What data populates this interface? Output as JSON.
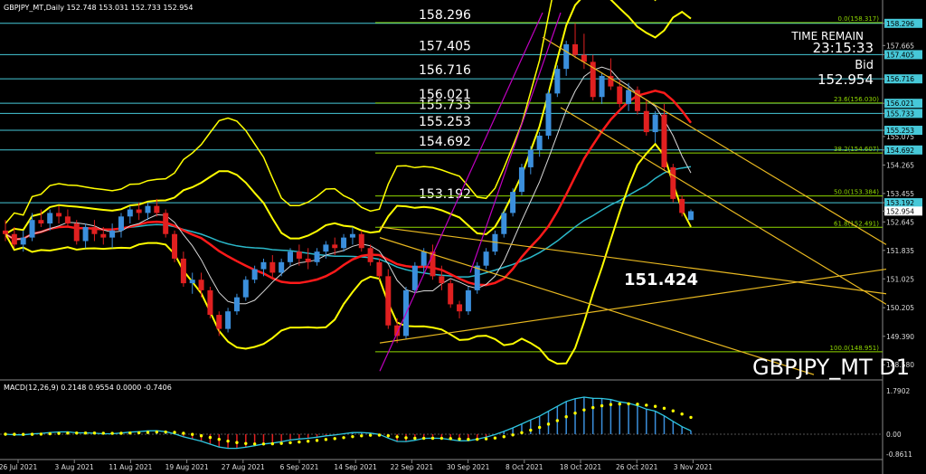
{
  "header": {
    "text": "GBPJPY_MT,Daily  152.748 153.031 152.733 152.954",
    "macd_text": "MACD(12,26,9) 0.2148 0.9554 0.0000 -0.7406"
  },
  "overlay": {
    "time_remain_label": "TIME REMAIN",
    "time_remain_value": "23:15:33",
    "bid_label": "Bid",
    "bid_value": "152.954",
    "symbol_label": "GBPJPY_MT D1",
    "big_level": "151.424"
  },
  "colors": {
    "background": "#000000",
    "bull": "#3b8fdc",
    "bear": "#e02020",
    "bands": "#ffff00",
    "ma_red": "#ff1a1a",
    "ma_cyan": "#2bb8c9",
    "ma_white": "#d8d8d8",
    "hline": "#46c8d8",
    "fib": "#8fd800",
    "trend_orange": "#e8b820",
    "channel_magenta": "#c000c0",
    "macd_hist": "#3b8fdc",
    "macd_neg": "#e02020",
    "macd_line": "#2ec6e0",
    "macd_signal": "#ffff00"
  },
  "chart_data": {
    "type": "candlestick",
    "title": "GBPJPY_MT,Daily",
    "ylim": [
      148.2,
      158.6
    ],
    "price_axis_labels": [
      "158.296",
      "157.665",
      "157.405",
      "156.716",
      "156.021",
      "155.733",
      "155.075",
      "155.253",
      "154.692",
      "154.265",
      "153.455",
      "153.192",
      "152.954",
      "152.645",
      "151.835",
      "151.025",
      "150.205",
      "149.390",
      "148.580"
    ],
    "x_axis_labels": [
      "26 Jul 2021",
      "3 Aug 2021",
      "11 Aug 2021",
      "19 Aug 2021",
      "27 Aug 2021",
      "6 Sep 2021",
      "14 Sep 2021",
      "22 Sep 2021",
      "30 Sep 2021",
      "8 Oct 2021",
      "18 Oct 2021",
      "26 Oct 2021",
      "3 Nov 2021"
    ],
    "horizontal_levels": [
      {
        "label": "158.296",
        "value": 158.296
      },
      {
        "label": "157.405",
        "value": 157.405
      },
      {
        "label": "156.716",
        "value": 156.716
      },
      {
        "label": "156.021",
        "value": 156.021
      },
      {
        "label": "155.733",
        "value": 155.733
      },
      {
        "label": "155.253",
        "value": 155.253
      },
      {
        "label": "154.692",
        "value": 154.692
      },
      {
        "label": "153.192",
        "value": 153.192
      }
    ],
    "fib_levels": [
      {
        "label": "0.0(158.317)",
        "value": 158.317
      },
      {
        "label": "23.6(156.030)",
        "value": 156.03
      },
      {
        "label": "38.2(154.607)",
        "value": 154.607
      },
      {
        "label": "50.0(153.384)",
        "value": 153.384
      },
      {
        "label": "61.8(152.491)",
        "value": 152.491
      },
      {
        "label": "100.0(148.951)",
        "value": 148.951
      }
    ],
    "candles": [
      [
        152.4,
        152.7,
        152.1,
        152.3
      ],
      [
        152.3,
        152.5,
        151.9,
        152.0
      ],
      [
        152.0,
        152.4,
        151.8,
        152.2
      ],
      [
        152.2,
        152.9,
        152.1,
        152.7
      ],
      [
        152.7,
        153.0,
        152.5,
        152.6
      ],
      [
        152.6,
        153.0,
        152.4,
        152.9
      ],
      [
        152.9,
        153.1,
        152.6,
        152.8
      ],
      [
        152.8,
        153.0,
        152.5,
        152.6
      ],
      [
        152.6,
        152.7,
        152.0,
        152.1
      ],
      [
        152.1,
        152.6,
        151.9,
        152.5
      ],
      [
        152.5,
        152.7,
        152.1,
        152.3
      ],
      [
        152.3,
        152.5,
        152.0,
        152.2
      ],
      [
        152.2,
        152.6,
        151.9,
        152.4
      ],
      [
        152.4,
        152.9,
        152.2,
        152.8
      ],
      [
        152.8,
        153.1,
        152.6,
        153.0
      ],
      [
        153.0,
        153.2,
        152.7,
        152.9
      ],
      [
        152.9,
        153.2,
        152.7,
        153.1
      ],
      [
        153.1,
        153.3,
        152.8,
        152.9
      ],
      [
        152.9,
        153.0,
        152.2,
        152.3
      ],
      [
        152.3,
        152.4,
        151.5,
        151.6
      ],
      [
        151.6,
        151.8,
        150.8,
        150.9
      ],
      [
        150.9,
        151.2,
        150.6,
        151.0
      ],
      [
        151.0,
        151.2,
        150.5,
        150.7
      ],
      [
        150.7,
        150.8,
        149.9,
        150.0
      ],
      [
        150.0,
        150.1,
        149.4,
        149.6
      ],
      [
        149.6,
        150.2,
        149.5,
        150.1
      ],
      [
        150.1,
        150.6,
        150.0,
        150.5
      ],
      [
        150.5,
        151.1,
        150.4,
        151.0
      ],
      [
        151.0,
        151.4,
        150.9,
        151.3
      ],
      [
        151.3,
        151.6,
        151.1,
        151.5
      ],
      [
        151.5,
        151.7,
        151.0,
        151.2
      ],
      [
        151.2,
        151.6,
        151.1,
        151.5
      ],
      [
        151.5,
        151.9,
        151.4,
        151.8
      ],
      [
        151.8,
        152.0,
        151.4,
        151.6
      ],
      [
        151.6,
        151.9,
        151.3,
        151.5
      ],
      [
        151.5,
        151.9,
        151.4,
        151.8
      ],
      [
        151.8,
        152.1,
        151.6,
        152.0
      ],
      [
        152.0,
        152.2,
        151.7,
        151.9
      ],
      [
        151.9,
        152.3,
        151.8,
        152.2
      ],
      [
        152.2,
        152.5,
        152.0,
        152.3
      ],
      [
        152.3,
        152.4,
        151.8,
        151.9
      ],
      [
        151.9,
        152.0,
        151.4,
        151.5
      ],
      [
        151.5,
        151.6,
        151.0,
        151.1
      ],
      [
        151.1,
        151.3,
        149.6,
        149.7
      ],
      [
        149.7,
        149.9,
        149.2,
        149.4
      ],
      [
        149.4,
        150.8,
        149.3,
        150.7
      ],
      [
        150.7,
        151.5,
        150.6,
        151.4
      ],
      [
        151.4,
        151.9,
        151.2,
        151.8
      ],
      [
        151.8,
        152.0,
        151.0,
        151.1
      ],
      [
        151.1,
        151.4,
        150.7,
        150.9
      ],
      [
        150.9,
        151.0,
        150.2,
        150.3
      ],
      [
        150.3,
        150.4,
        149.9,
        150.1
      ],
      [
        150.1,
        150.8,
        150.0,
        150.7
      ],
      [
        150.7,
        151.5,
        150.6,
        151.4
      ],
      [
        151.4,
        151.9,
        151.3,
        151.8
      ],
      [
        151.8,
        152.4,
        151.7,
        152.3
      ],
      [
        152.3,
        153.0,
        152.2,
        152.9
      ],
      [
        152.9,
        153.6,
        152.8,
        153.5
      ],
      [
        153.5,
        154.3,
        153.4,
        154.2
      ],
      [
        154.2,
        154.8,
        154.0,
        154.7
      ],
      [
        154.7,
        155.2,
        154.5,
        155.1
      ],
      [
        155.1,
        156.4,
        155.0,
        156.3
      ],
      [
        156.3,
        157.1,
        156.2,
        157.0
      ],
      [
        157.0,
        157.8,
        156.8,
        157.7
      ],
      [
        157.7,
        158.3,
        157.3,
        157.4
      ],
      [
        157.4,
        158.0,
        157.0,
        157.2
      ],
      [
        157.2,
        157.4,
        156.1,
        156.2
      ],
      [
        156.2,
        156.9,
        156.0,
        156.8
      ],
      [
        156.8,
        157.3,
        156.4,
        156.5
      ],
      [
        156.5,
        156.7,
        155.9,
        156.0
      ],
      [
        156.0,
        156.6,
        155.8,
        156.4
      ],
      [
        156.4,
        156.5,
        155.7,
        155.8
      ],
      [
        155.8,
        156.1,
        155.1,
        155.2
      ],
      [
        155.2,
        155.8,
        154.9,
        155.7
      ],
      [
        155.7,
        156.0,
        154.1,
        154.2
      ],
      [
        154.2,
        154.3,
        153.2,
        153.3
      ],
      [
        153.3,
        153.4,
        152.8,
        152.9
      ],
      [
        152.7,
        153.0,
        152.7,
        152.95
      ]
    ]
  }
}
